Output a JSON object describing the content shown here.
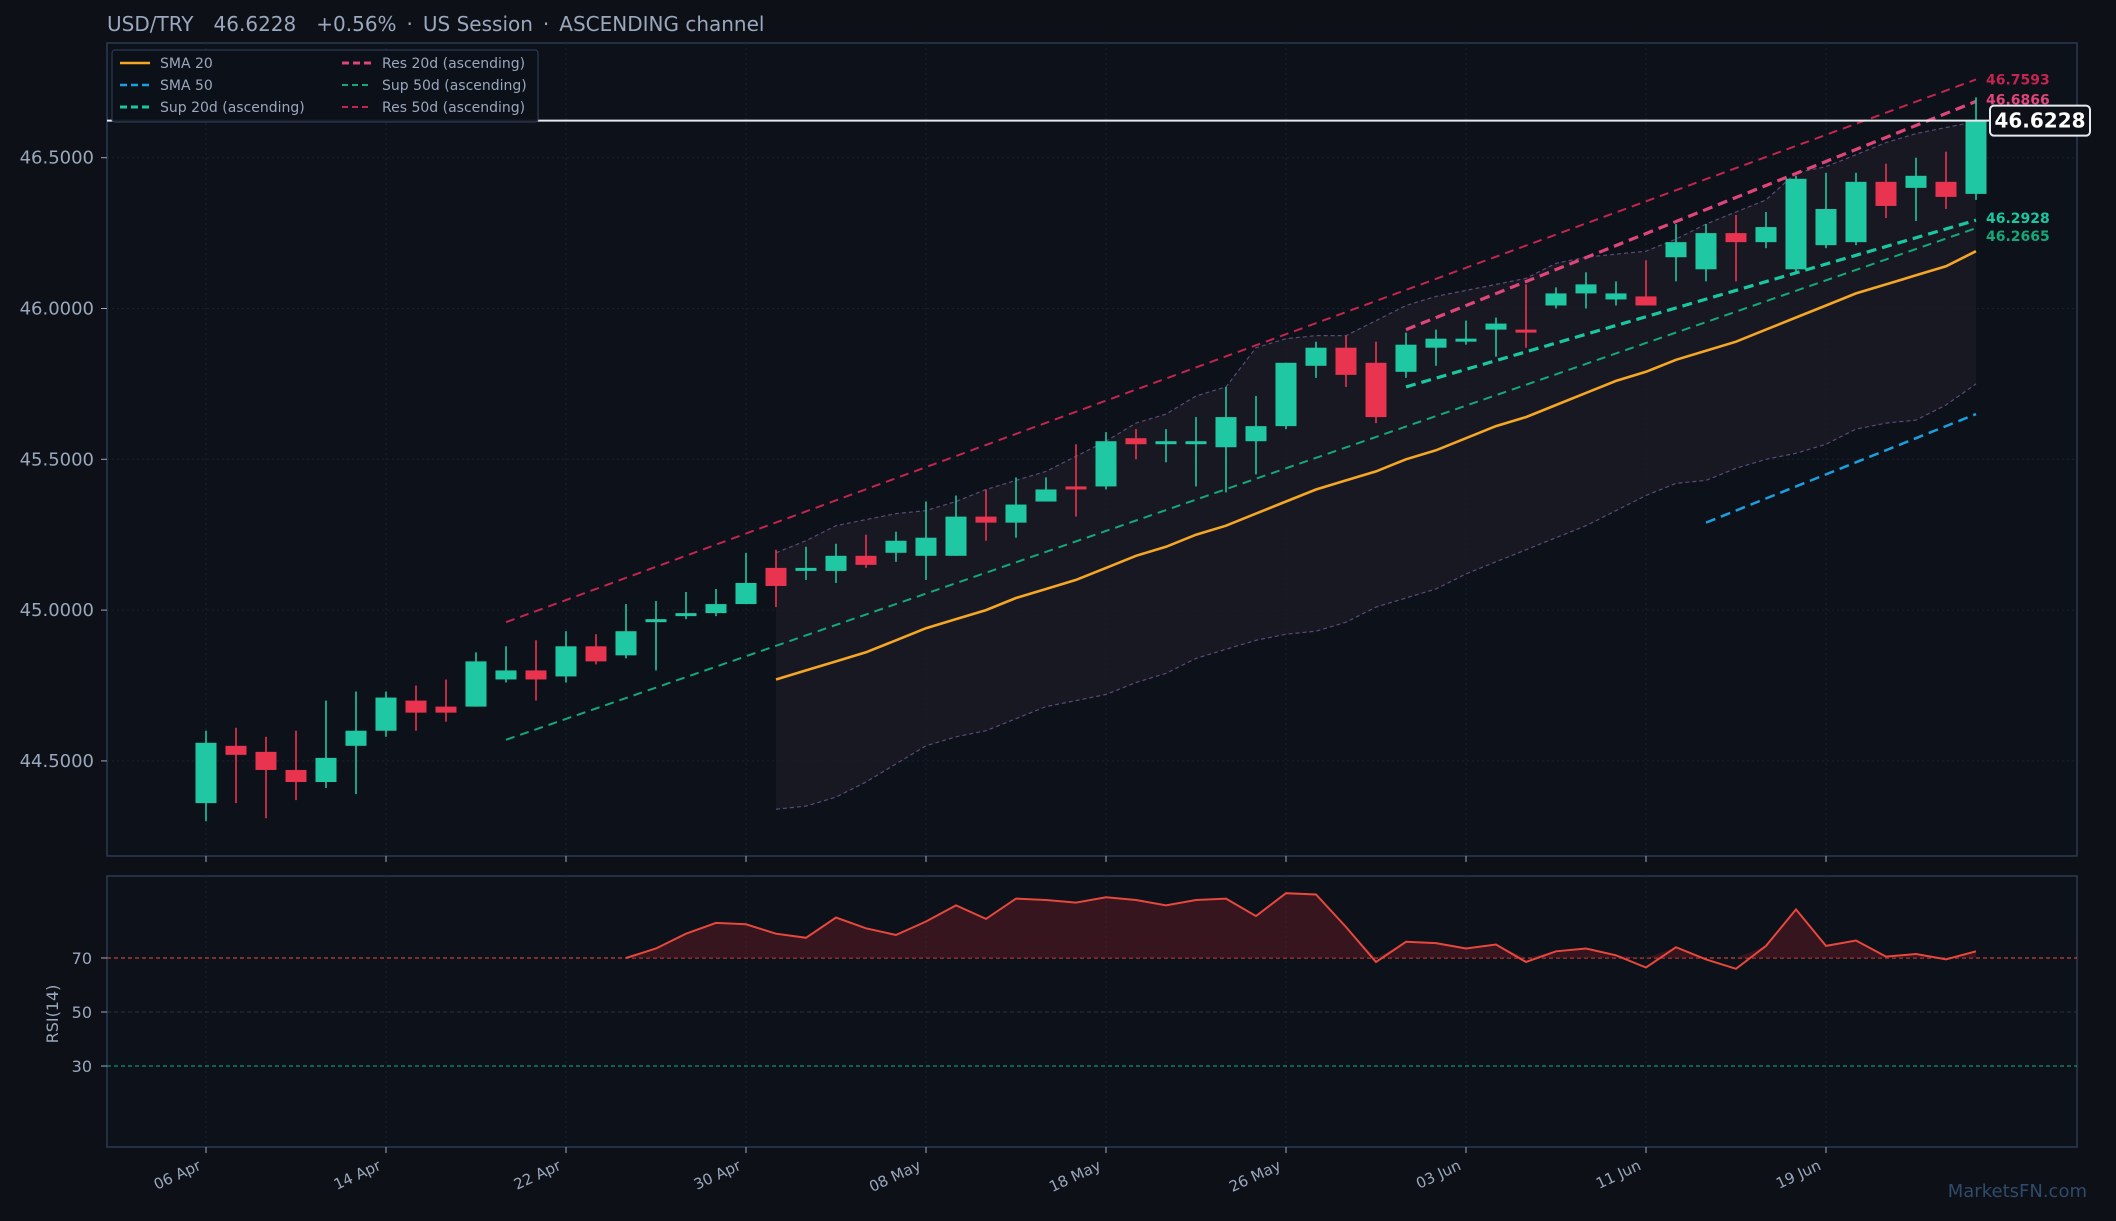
{
  "header": {
    "symbol": "USD/TRY",
    "price": "46.6228",
    "change": "+0.56%",
    "session": "US Session",
    "pattern": "ASCENDING channel"
  },
  "watermark": "MarketsFN.com",
  "colors": {
    "background": "#0d1017",
    "panel_border": "#2b3b52",
    "up": "#1fc7a2",
    "down": "#e8344f",
    "sma20": "#f5a623",
    "sma50": "#1a9fe0",
    "res": "#e0457a",
    "res50": "#c2254f",
    "sup": "#18c8a0",
    "sup50": "#14a878",
    "rsi": "#e8483c",
    "text": "#9aa7bc"
  },
  "chart_data": [
    {
      "type": "candlestick",
      "x_dates": [
        "2025-04-06",
        "2025-04-07",
        "2025-04-08",
        "2025-04-09",
        "2025-04-10",
        "2025-04-13",
        "2025-04-14",
        "2025-04-15",
        "2025-04-16",
        "2025-04-17",
        "2025-04-20",
        "2025-04-21",
        "2025-04-22",
        "2025-04-23",
        "2025-04-24",
        "2025-04-27",
        "2025-04-28",
        "2025-04-29",
        "2025-04-30",
        "2025-05-01",
        "2025-05-04",
        "2025-05-05",
        "2025-05-06",
        "2025-05-07",
        "2025-05-08",
        "2025-05-11",
        "2025-05-12",
        "2025-05-13",
        "2025-05-14",
        "2025-05-15",
        "2025-05-18",
        "2025-05-19",
        "2025-05-20",
        "2025-05-21",
        "2025-05-22",
        "2025-05-25",
        "2025-05-26",
        "2025-05-27",
        "2025-05-28",
        "2025-05-29",
        "2025-06-01",
        "2025-06-02",
        "2025-06-03",
        "2025-06-04",
        "2025-06-05",
        "2025-06-08",
        "2025-06-09",
        "2025-06-10",
        "2025-06-11",
        "2025-06-12",
        "2025-06-15",
        "2025-06-16",
        "2025-06-17",
        "2025-06-18",
        "2025-06-19",
        "2025-06-22",
        "2025-06-23",
        "2025-06-24",
        "2025-06-25",
        "2025-06-26"
      ],
      "x_ticks": [
        {
          "date": "2025-04-06",
          "label": "06 Apr"
        },
        {
          "date": "2025-04-14",
          "label": "14 Apr"
        },
        {
          "date": "2025-04-22",
          "label": "22 Apr"
        },
        {
          "date": "2025-04-30",
          "label": "30 Apr"
        },
        {
          "date": "2025-05-08",
          "label": "08 May"
        },
        {
          "date": "2025-05-18",
          "label": "18 May"
        },
        {
          "date": "2025-05-26",
          "label": "26 May"
        },
        {
          "date": "2025-06-03",
          "label": "03 Jun"
        },
        {
          "date": "2025-06-11",
          "label": "11 Jun"
        },
        {
          "date": "2025-06-19",
          "label": "19 Jun"
        }
      ],
      "ylim": [
        44.27,
        46.8
      ],
      "y_ticks": [
        44.5,
        45.0,
        45.5,
        46.0,
        46.5
      ],
      "y_tick_labels": [
        "44.5000",
        "45.0000",
        "45.5000",
        "46.0000",
        "46.5000"
      ],
      "candles": [
        {
          "o": 44.36,
          "h": 44.6,
          "l": 44.3,
          "c": 44.56
        },
        {
          "o": 44.55,
          "h": 44.61,
          "l": 44.36,
          "c": 44.52
        },
        {
          "o": 44.53,
          "h": 44.58,
          "l": 44.31,
          "c": 44.47
        },
        {
          "o": 44.47,
          "h": 44.6,
          "l": 44.37,
          "c": 44.43
        },
        {
          "o": 44.43,
          "h": 44.7,
          "l": 44.41,
          "c": 44.51
        },
        {
          "o": 44.55,
          "h": 44.73,
          "l": 44.39,
          "c": 44.6
        },
        {
          "o": 44.6,
          "h": 44.73,
          "l": 44.58,
          "c": 44.71
        },
        {
          "o": 44.7,
          "h": 44.75,
          "l": 44.6,
          "c": 44.66
        },
        {
          "o": 44.68,
          "h": 44.77,
          "l": 44.63,
          "c": 44.66
        },
        {
          "o": 44.68,
          "h": 44.86,
          "l": 44.68,
          "c": 44.83
        },
        {
          "o": 44.77,
          "h": 44.88,
          "l": 44.76,
          "c": 44.8
        },
        {
          "o": 44.8,
          "h": 44.9,
          "l": 44.7,
          "c": 44.77
        },
        {
          "o": 44.78,
          "h": 44.93,
          "l": 44.76,
          "c": 44.88
        },
        {
          "o": 44.88,
          "h": 44.92,
          "l": 44.82,
          "c": 44.83
        },
        {
          "o": 44.85,
          "h": 45.02,
          "l": 44.84,
          "c": 44.93
        },
        {
          "o": 44.96,
          "h": 45.03,
          "l": 44.8,
          "c": 44.97
        },
        {
          "o": 44.98,
          "h": 45.06,
          "l": 44.97,
          "c": 44.99
        },
        {
          "o": 44.99,
          "h": 45.07,
          "l": 44.98,
          "c": 45.02
        },
        {
          "o": 45.02,
          "h": 45.19,
          "l": 45.02,
          "c": 45.09
        },
        {
          "o": 45.14,
          "h": 45.2,
          "l": 45.01,
          "c": 45.08
        },
        {
          "o": 45.13,
          "h": 45.21,
          "l": 45.1,
          "c": 45.14
        },
        {
          "o": 45.13,
          "h": 45.22,
          "l": 45.09,
          "c": 45.18
        },
        {
          "o": 45.18,
          "h": 45.25,
          "l": 45.14,
          "c": 45.15
        },
        {
          "o": 45.19,
          "h": 45.26,
          "l": 45.16,
          "c": 45.23
        },
        {
          "o": 45.18,
          "h": 45.36,
          "l": 45.1,
          "c": 45.24
        },
        {
          "o": 45.18,
          "h": 45.38,
          "l": 45.18,
          "c": 45.31
        },
        {
          "o": 45.31,
          "h": 45.4,
          "l": 45.23,
          "c": 45.29
        },
        {
          "o": 45.29,
          "h": 45.44,
          "l": 45.24,
          "c": 45.35
        },
        {
          "o": 45.36,
          "h": 45.44,
          "l": 45.36,
          "c": 45.4
        },
        {
          "o": 45.41,
          "h": 45.55,
          "l": 45.31,
          "c": 45.4
        },
        {
          "o": 45.41,
          "h": 45.59,
          "l": 45.4,
          "c": 45.56
        },
        {
          "o": 45.57,
          "h": 45.6,
          "l": 45.5,
          "c": 45.55
        },
        {
          "o": 45.55,
          "h": 45.6,
          "l": 45.49,
          "c": 45.56
        },
        {
          "o": 45.55,
          "h": 45.64,
          "l": 45.41,
          "c": 45.56
        },
        {
          "o": 45.54,
          "h": 45.74,
          "l": 45.39,
          "c": 45.64
        },
        {
          "o": 45.56,
          "h": 45.71,
          "l": 45.45,
          "c": 45.61
        },
        {
          "o": 45.61,
          "h": 45.82,
          "l": 45.6,
          "c": 45.82
        },
        {
          "o": 45.81,
          "h": 45.89,
          "l": 45.77,
          "c": 45.87
        },
        {
          "o": 45.87,
          "h": 45.91,
          "l": 45.74,
          "c": 45.78
        },
        {
          "o": 45.82,
          "h": 45.89,
          "l": 45.62,
          "c": 45.64
        },
        {
          "o": 45.79,
          "h": 45.92,
          "l": 45.77,
          "c": 45.88
        },
        {
          "o": 45.87,
          "h": 45.93,
          "l": 45.81,
          "c": 45.9
        },
        {
          "o": 45.89,
          "h": 45.96,
          "l": 45.88,
          "c": 45.9
        },
        {
          "o": 45.93,
          "h": 45.97,
          "l": 45.84,
          "c": 45.95
        },
        {
          "o": 45.93,
          "h": 46.08,
          "l": 45.87,
          "c": 45.92
        },
        {
          "o": 46.01,
          "h": 46.07,
          "l": 46.0,
          "c": 46.05
        },
        {
          "o": 46.05,
          "h": 46.12,
          "l": 46.0,
          "c": 46.08
        },
        {
          "o": 46.03,
          "h": 46.09,
          "l": 46.01,
          "c": 46.05
        },
        {
          "o": 46.04,
          "h": 46.16,
          "l": 46.03,
          "c": 46.01
        },
        {
          "o": 46.17,
          "h": 46.28,
          "l": 46.09,
          "c": 46.22
        },
        {
          "o": 46.13,
          "h": 46.28,
          "l": 46.09,
          "c": 46.25
        },
        {
          "o": 46.25,
          "h": 46.31,
          "l": 46.09,
          "c": 46.22
        },
        {
          "o": 46.22,
          "h": 46.32,
          "l": 46.2,
          "c": 46.27
        },
        {
          "o": 46.13,
          "h": 46.44,
          "l": 46.12,
          "c": 46.43
        },
        {
          "o": 46.21,
          "h": 46.45,
          "l": 46.2,
          "c": 46.33
        },
        {
          "o": 46.22,
          "h": 46.45,
          "l": 46.21,
          "c": 46.42
        },
        {
          "o": 46.42,
          "h": 46.48,
          "l": 46.3,
          "c": 46.34
        },
        {
          "o": 46.4,
          "h": 46.5,
          "l": 46.29,
          "c": 46.44
        },
        {
          "o": 46.42,
          "h": 46.52,
          "l": 46.33,
          "c": 46.37
        },
        {
          "o": 46.38,
          "h": 46.7,
          "l": 46.36,
          "c": 46.6228
        }
      ],
      "sma20": {
        "start_index": 19,
        "values": [
          44.77,
          44.8,
          44.83,
          44.86,
          44.9,
          44.94,
          44.97,
          45.0,
          45.04,
          45.07,
          45.1,
          45.14,
          45.18,
          45.21,
          45.25,
          45.28,
          45.32,
          45.36,
          45.4,
          45.43,
          45.46,
          45.5,
          45.53,
          45.57,
          45.61,
          45.64,
          45.68,
          45.72,
          45.76,
          45.79,
          45.83,
          45.86,
          45.89,
          45.93,
          45.97,
          46.01,
          46.05,
          46.08,
          46.11,
          46.14,
          46.19
        ]
      },
      "bb_upper": {
        "start_index": 19,
        "values": [
          45.19,
          45.23,
          45.28,
          45.3,
          45.32,
          45.33,
          45.36,
          45.4,
          45.43,
          45.46,
          45.51,
          45.56,
          45.62,
          45.65,
          45.71,
          45.74,
          45.87,
          45.9,
          45.91,
          45.91,
          45.96,
          46.01,
          46.04,
          46.06,
          46.08,
          46.1,
          46.15,
          46.17,
          46.18,
          46.19,
          46.23,
          46.28,
          46.32,
          46.36,
          46.45,
          46.47,
          46.51,
          46.55,
          46.58,
          46.6,
          46.62
        ]
      },
      "bb_lower": {
        "start_index": 19,
        "values": [
          44.34,
          44.35,
          44.38,
          44.43,
          44.49,
          44.55,
          44.58,
          44.6,
          44.64,
          44.68,
          44.7,
          44.72,
          44.76,
          44.79,
          44.84,
          44.87,
          44.9,
          44.92,
          44.93,
          44.96,
          45.01,
          45.04,
          45.07,
          45.12,
          45.16,
          45.2,
          45.24,
          45.28,
          45.33,
          45.38,
          45.42,
          45.43,
          45.47,
          45.5,
          45.52,
          45.55,
          45.6,
          45.62,
          45.63,
          45.68,
          45.75
        ]
      },
      "lines": [
        {
          "name": "SMA 20",
          "style": "solid"
        },
        {
          "name": "SMA 50",
          "style": "dashed",
          "from_index": 50,
          "from": 45.29,
          "to_index": 59,
          "to": 45.65
        },
        {
          "name": "Sup 20d (ascending)",
          "style": "dashed-bold",
          "from_index": 40,
          "from": 45.74,
          "to_index": 59,
          "to": 46.2928
        },
        {
          "name": "Sup 50d (ascending)",
          "style": "dashed",
          "from_index": 10,
          "from": 44.57,
          "to_index": 59,
          "to": 46.2665
        },
        {
          "name": "Res 20d (ascending)",
          "style": "dashed-bold",
          "from_index": 40,
          "from": 45.93,
          "to_index": 59,
          "to": 46.6866
        },
        {
          "name": "Res 50d (ascending)",
          "style": "dashed",
          "from_index": 10,
          "from": 44.96,
          "to_index": 59,
          "to": 46.7593
        }
      ],
      "level_labels": [
        "46.7593",
        "46.6866",
        "46.2928",
        "46.2665"
      ],
      "last_price": 46.6228,
      "last_price_label": "46.6228",
      "legend": {
        "placement": "top-left",
        "columns": 2
      },
      "grid": true
    },
    {
      "type": "line",
      "ylabel": "RSI(14)",
      "ylim": [
        0,
        100
      ],
      "y_ticks": [
        30,
        50,
        70
      ],
      "y_tick_labels": [
        "30",
        "50",
        "70"
      ],
      "hlines": [
        70,
        50,
        30
      ],
      "start_index": 14,
      "values": [
        70.0,
        73.5,
        79.0,
        83.0,
        82.5,
        79.0,
        77.5,
        85.0,
        81.0,
        78.5,
        83.5,
        89.5,
        84.5,
        92.0,
        91.5,
        90.5,
        92.5,
        91.5,
        89.5,
        91.5,
        92.0,
        85.5,
        94.0,
        93.5,
        81.5,
        68.5,
        76.0,
        75.5,
        73.5,
        75.0,
        68.5,
        72.5,
        73.5,
        71.0,
        66.5,
        74.0,
        69.5,
        66.0,
        74.5,
        88.0,
        74.5,
        76.5,
        70.5,
        71.5,
        69.5,
        72.5
      ]
    }
  ]
}
